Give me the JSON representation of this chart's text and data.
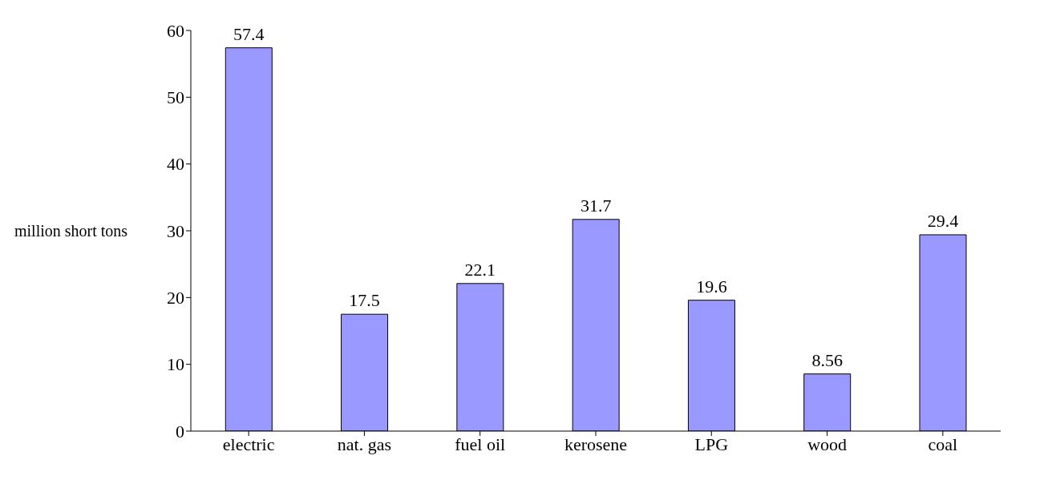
{
  "chart_data": {
    "type": "bar",
    "ylabel": "million short tons",
    "categories": [
      "electric",
      "nat. gas",
      "fuel oil",
      "kerosene",
      "LPG",
      "wood",
      "coal"
    ],
    "values": [
      57.4,
      17.5,
      22.1,
      31.7,
      19.6,
      8.56,
      29.4
    ],
    "color": "#9999ff",
    "ylim": [
      0,
      60
    ],
    "yticks": [
      0,
      10,
      20,
      30,
      40,
      50,
      60
    ],
    "grid": false,
    "data_labels": true
  }
}
